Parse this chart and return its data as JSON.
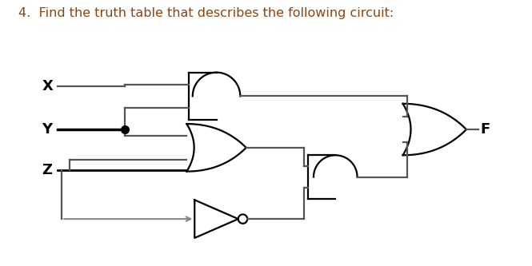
{
  "title": "4.  Find the truth table that describes the following circuit:",
  "title_color": "#8B4513",
  "title_fontsize": 11.5,
  "wire_color": "#555555",
  "gate_color": "#000000",
  "gate_linewidth": 1.6,
  "wire_linewidth": 1.6,
  "bg_color": "#ffffff",
  "label_X": "X",
  "label_Y": "Y",
  "label_Z": "Z",
  "label_F": "F",
  "input_label_fontsize": 13
}
